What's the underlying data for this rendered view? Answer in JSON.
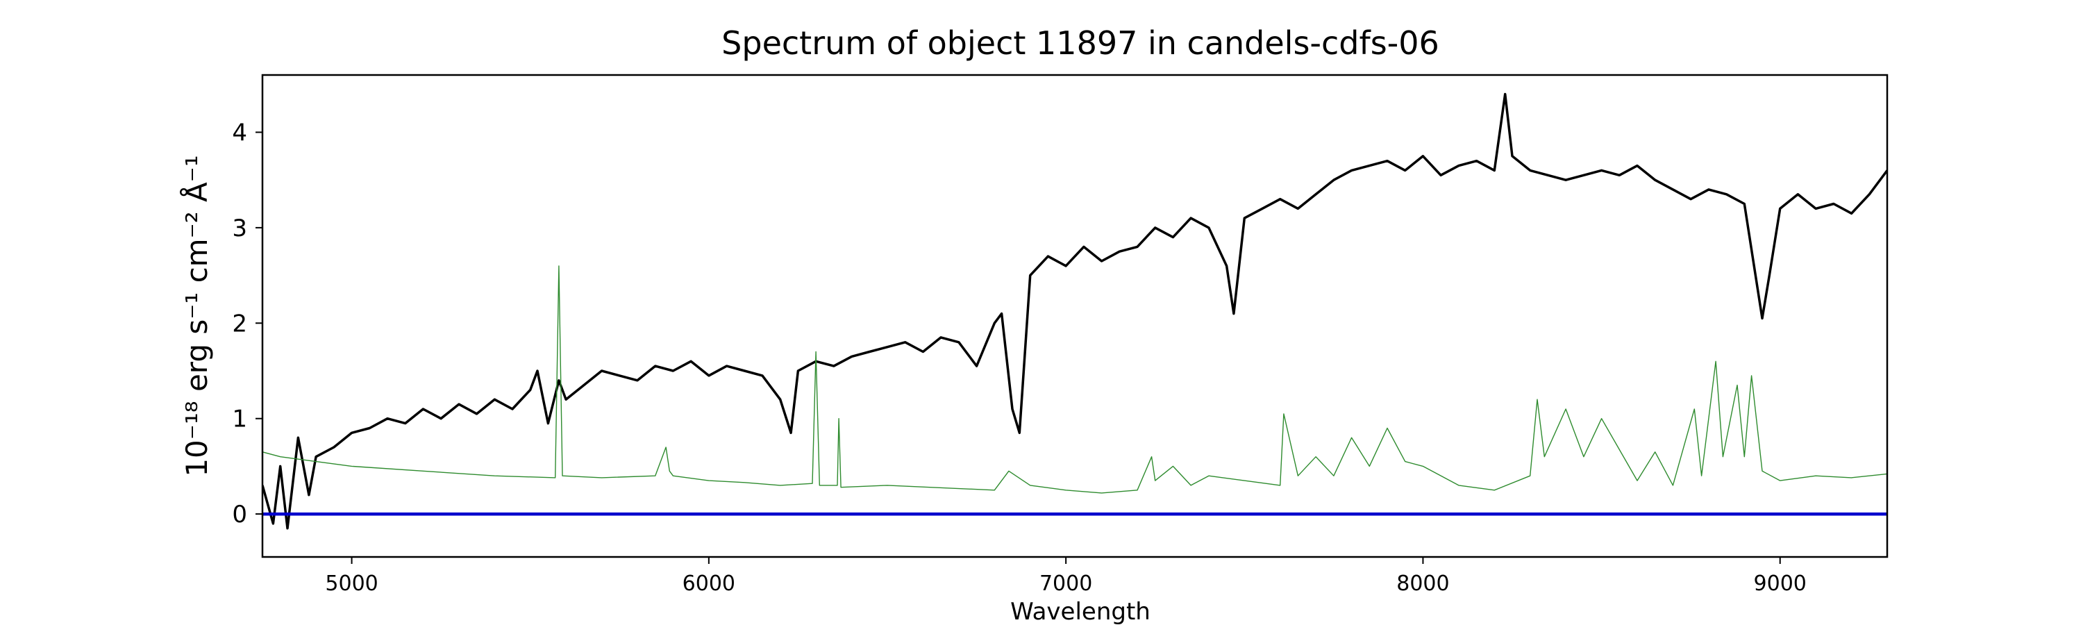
{
  "chart_data": {
    "type": "line",
    "title": "Spectrum of object 11897 in candels-cdfs-06",
    "xlabel": "Wavelength",
    "ylabel": "10⁻¹⁸ erg s⁻¹ cm⁻² Å⁻¹",
    "xlim": [
      4750,
      9300
    ],
    "ylim": [
      -0.45,
      4.6
    ],
    "x_ticks": [
      5000,
      6000,
      7000,
      8000,
      9000
    ],
    "y_ticks": [
      0,
      1,
      2,
      3,
      4
    ],
    "grid": false,
    "legend": "none",
    "series": [
      {
        "color": "#000000",
        "style": "spectrum",
        "x": [
          4750,
          4780,
          4800,
          4820,
          4850,
          4880,
          4900,
          4950,
          5000,
          5050,
          5100,
          5150,
          5200,
          5250,
          5300,
          5350,
          5400,
          5450,
          5500,
          5520,
          5550,
          5580,
          5600,
          5650,
          5700,
          5750,
          5800,
          5850,
          5900,
          5950,
          6000,
          6050,
          6100,
          6150,
          6200,
          6230,
          6250,
          6300,
          6350,
          6400,
          6450,
          6500,
          6550,
          6600,
          6650,
          6700,
          6750,
          6800,
          6820,
          6850,
          6870,
          6900,
          6950,
          7000,
          7050,
          7100,
          7150,
          7200,
          7250,
          7300,
          7350,
          7400,
          7450,
          7470,
          7500,
          7550,
          7600,
          7650,
          7700,
          7750,
          7800,
          7850,
          7900,
          7950,
          8000,
          8050,
          8100,
          8150,
          8200,
          8230,
          8250,
          8300,
          8350,
          8400,
          8450,
          8500,
          8550,
          8600,
          8650,
          8700,
          8750,
          8800,
          8850,
          8900,
          8950,
          8970,
          9000,
          9050,
          9100,
          9150,
          9200,
          9250,
          9300
        ],
        "y": [
          0.3,
          -0.1,
          0.5,
          -0.15,
          0.8,
          0.2,
          0.6,
          0.7,
          0.85,
          0.9,
          1.0,
          0.95,
          1.1,
          1.0,
          1.15,
          1.05,
          1.2,
          1.1,
          1.3,
          1.5,
          0.95,
          1.4,
          1.2,
          1.35,
          1.5,
          1.45,
          1.4,
          1.55,
          1.5,
          1.6,
          1.45,
          1.55,
          1.5,
          1.45,
          1.2,
          0.85,
          1.5,
          1.6,
          1.55,
          1.65,
          1.7,
          1.75,
          1.8,
          1.7,
          1.85,
          1.8,
          1.55,
          2.0,
          2.1,
          1.1,
          0.85,
          2.5,
          2.7,
          2.6,
          2.8,
          2.65,
          2.75,
          2.8,
          3.0,
          2.9,
          3.1,
          3.0,
          2.6,
          2.1,
          3.1,
          3.2,
          3.3,
          3.2,
          3.35,
          3.5,
          3.6,
          3.65,
          3.7,
          3.6,
          3.75,
          3.55,
          3.65,
          3.7,
          3.6,
          4.4,
          3.75,
          3.6,
          3.55,
          3.5,
          3.55,
          3.6,
          3.55,
          3.65,
          3.5,
          3.4,
          3.3,
          3.4,
          3.35,
          3.25,
          2.05,
          2.5,
          3.2,
          3.35,
          3.2,
          3.25,
          3.15,
          3.35,
          3.6
        ]
      },
      {
        "color": "#2e8b2e",
        "style": "thin",
        "x": [
          4750,
          4800,
          4900,
          5000,
          5200,
          5400,
          5570,
          5580,
          5590,
          5700,
          5850,
          5880,
          5890,
          5900,
          6000,
          6100,
          6200,
          6290,
          6300,
          6310,
          6360,
          6364,
          6370,
          6500,
          6800,
          6840,
          6900,
          7000,
          7100,
          7200,
          7240,
          7250,
          7300,
          7350,
          7400,
          7500,
          7600,
          7610,
          7650,
          7700,
          7750,
          7800,
          7850,
          7900,
          7950,
          8000,
          8100,
          8200,
          8300,
          8320,
          8340,
          8400,
          8450,
          8500,
          8600,
          8650,
          8700,
          8760,
          8780,
          8820,
          8840,
          8880,
          8900,
          8920,
          8950,
          9000,
          9100,
          9200,
          9300
        ],
        "y": [
          0.65,
          0.6,
          0.55,
          0.5,
          0.45,
          0.4,
          0.38,
          2.6,
          0.4,
          0.38,
          0.4,
          0.7,
          0.45,
          0.4,
          0.35,
          0.33,
          0.3,
          0.32,
          1.7,
          0.3,
          0.3,
          1.0,
          0.28,
          0.3,
          0.25,
          0.45,
          0.3,
          0.25,
          0.22,
          0.25,
          0.6,
          0.35,
          0.5,
          0.3,
          0.4,
          0.35,
          0.3,
          1.05,
          0.4,
          0.6,
          0.4,
          0.8,
          0.5,
          0.9,
          0.55,
          0.5,
          0.3,
          0.25,
          0.4,
          1.2,
          0.6,
          1.1,
          0.6,
          1.0,
          0.35,
          0.65,
          0.3,
          1.1,
          0.4,
          1.6,
          0.6,
          1.35,
          0.6,
          1.45,
          0.45,
          0.35,
          0.4,
          0.38,
          0.42
        ]
      },
      {
        "color": "#0000cd",
        "style": "thick",
        "x": [
          4750,
          9300
        ],
        "y": [
          0,
          0
        ]
      }
    ]
  }
}
